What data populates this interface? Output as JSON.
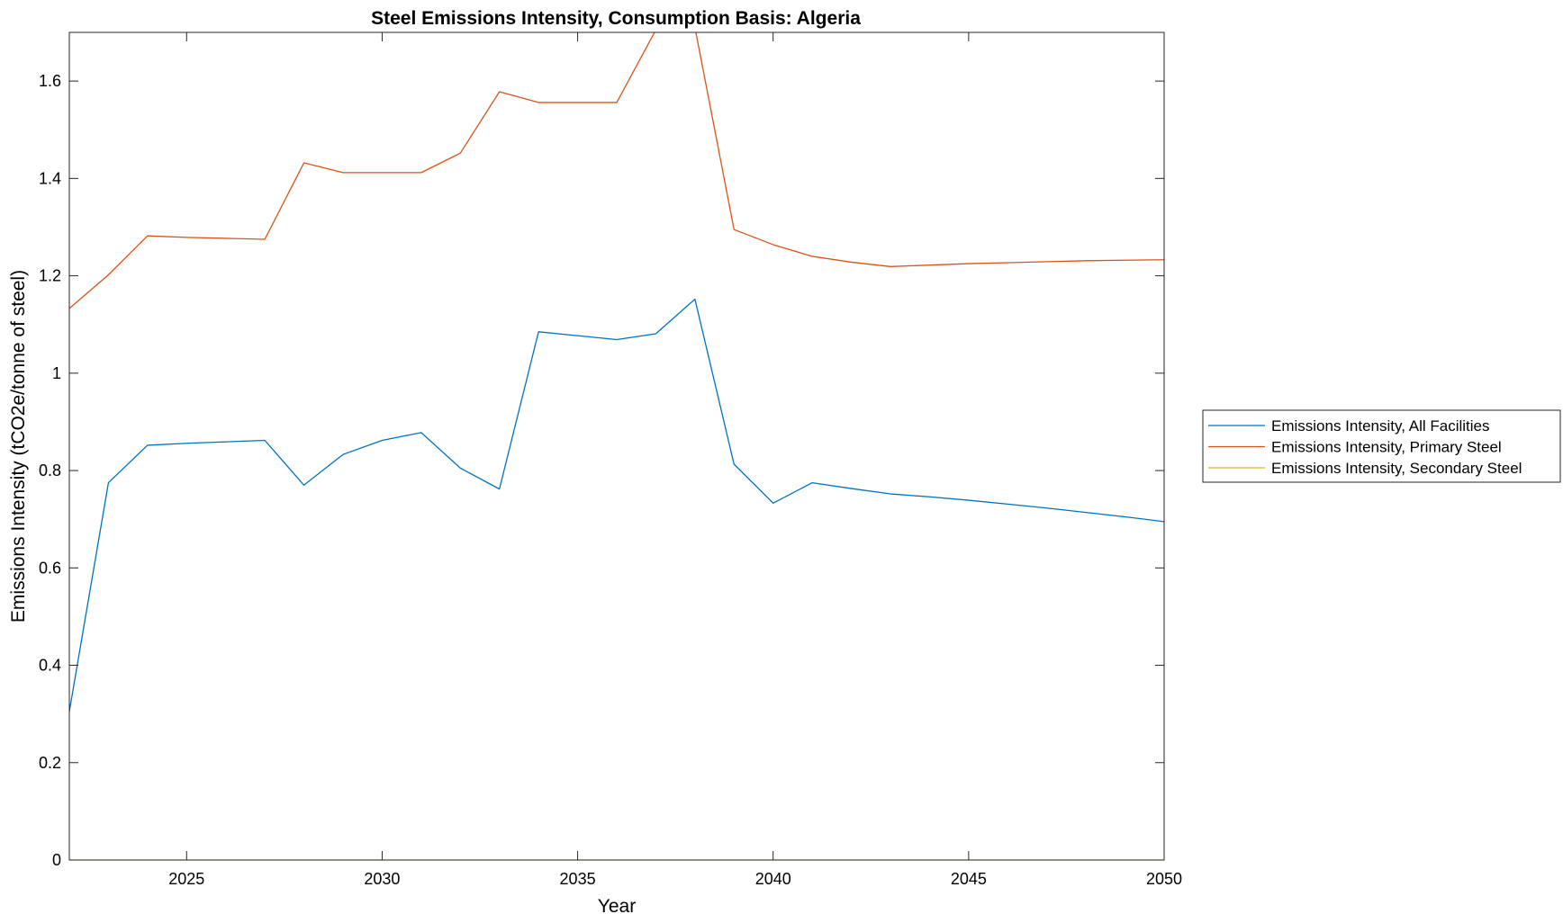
{
  "chart_data": {
    "type": "line",
    "title": "Steel Emissions Intensity, Consumption Basis: Algeria",
    "xlabel": "Year",
    "ylabel": "Emissions Intensity (tCO2e/tonne of steel)",
    "xlim": [
      2022,
      2050
    ],
    "ylim": [
      0,
      1.7
    ],
    "xticks": [
      2025,
      2030,
      2035,
      2040,
      2045,
      2050
    ],
    "yticks": [
      0,
      0.2,
      0.4,
      0.6,
      0.8,
      1,
      1.2,
      1.4,
      1.6
    ],
    "ytick_labels": [
      "0",
      "0.2",
      "0.4",
      "0.6",
      "0.8",
      "1",
      "1.2",
      "1.4",
      "1.6"
    ],
    "grid": false,
    "box": true,
    "legend_position": "outside-right",
    "x": [
      2022,
      2023,
      2024,
      2025,
      2026,
      2027,
      2028,
      2029,
      2030,
      2031,
      2032,
      2033,
      2034,
      2035,
      2036,
      2037,
      2038,
      2039,
      2040,
      2041,
      2042,
      2043,
      2044,
      2045,
      2046,
      2047,
      2048,
      2049,
      2050
    ],
    "series": [
      {
        "name": "Emissions Intensity, All Facilities",
        "color": "#0072BD",
        "values": [
          0.305,
          0.775,
          0.852,
          0.856,
          0.859,
          0.862,
          0.77,
          0.833,
          0.862,
          0.878,
          0.805,
          0.762,
          1.085,
          1.077,
          1.069,
          1.081,
          1.152,
          0.813,
          0.733,
          0.775,
          0.763,
          0.752,
          0.746,
          0.739,
          0.731,
          0.723,
          0.714,
          0.705,
          0.695
        ]
      },
      {
        "name": "Emissions Intensity, Primary Steel",
        "color": "#D95319",
        "values": [
          1.133,
          1.202,
          1.282,
          1.279,
          1.277,
          1.275,
          1.432,
          1.412,
          1.412,
          1.412,
          1.452,
          1.578,
          1.556,
          1.556,
          1.556,
          1.705,
          1.71,
          1.295,
          1.264,
          1.24,
          1.228,
          1.219,
          1.222,
          1.225,
          1.227,
          1.229,
          1.231,
          1.232,
          1.233
        ]
      },
      {
        "name": "Emissions Intensity, Secondary Steel",
        "color": "#EDB120",
        "values": [
          0,
          0,
          0,
          0,
          0,
          0,
          0,
          0,
          0,
          0,
          0,
          0,
          0,
          0,
          0,
          0,
          0,
          0,
          0,
          0,
          0,
          0,
          0,
          0,
          0,
          0,
          0,
          0,
          0
        ]
      }
    ]
  }
}
